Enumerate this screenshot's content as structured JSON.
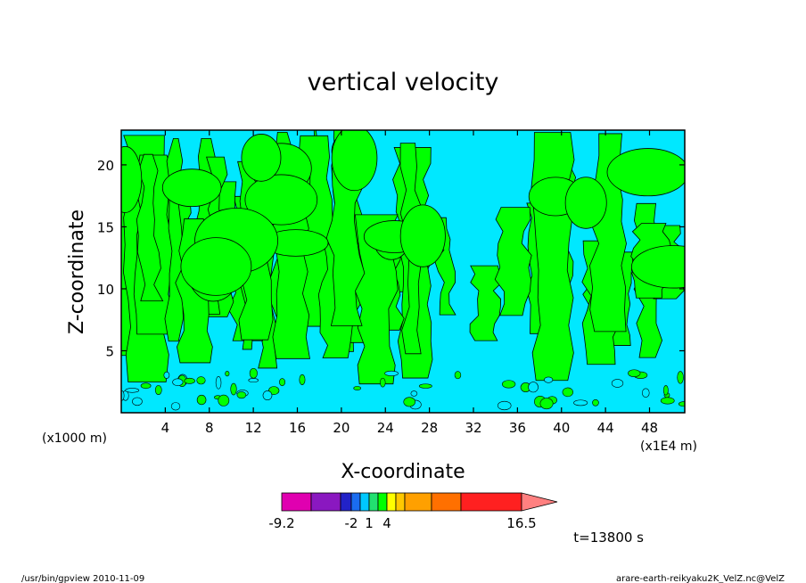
{
  "chart_data": {
    "type": "heatmap",
    "subtype": "filled-contour",
    "title": "vertical velocity",
    "xlabel": "X-coordinate",
    "ylabel": "Z-coordinate",
    "x_unit": "(x1E4 m)",
    "y_unit": "(x1000 m)",
    "xlim": [
      0,
      51.2
    ],
    "ylim": [
      0,
      22.8
    ],
    "x_ticks": [
      4,
      8,
      12,
      16,
      20,
      24,
      28,
      32,
      36,
      40,
      44,
      48
    ],
    "y_ticks": [
      5,
      10,
      15,
      20
    ],
    "colorbar": {
      "colors": [
        "#e000b0",
        "#8a18c0",
        "#2222c8",
        "#1a6cf0",
        "#00c8ff",
        "#22e070",
        "#00ff00",
        "#ffff00",
        "#ffc800",
        "#ffa000",
        "#ff7000",
        "#ff2020",
        "#ff8080"
      ],
      "tick_labels": [
        "-9.2",
        "-2",
        "1",
        "4",
        "16.5"
      ],
      "tick_level_index": [
        0,
        3,
        5,
        7,
        13
      ]
    },
    "dominant_levels": [
      {
        "range": [
          -1,
          0
        ],
        "color": "#00e8ff"
      },
      {
        "range": [
          0,
          1
        ],
        "color": "#00ff00"
      }
    ],
    "time_label": "t=13800 s"
  },
  "footer": {
    "left": "/usr/bin/gpview   2010-11-09",
    "right": "arare-earth-reikyaku2K_VelZ.nc@VelZ"
  }
}
